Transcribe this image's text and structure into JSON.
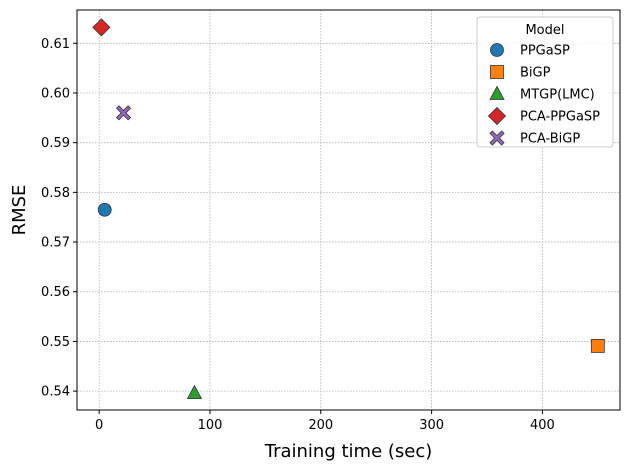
{
  "chart_data": {
    "type": "scatter",
    "title": "",
    "xlabel": "Training time (sec)",
    "ylabel": "RMSE",
    "xlim": [
      -20,
      470
    ],
    "ylim": [
      0.5362,
      0.6167
    ],
    "xticks": [
      0,
      100,
      200,
      300,
      400
    ],
    "yticks": [
      0.54,
      0.55,
      0.56,
      0.57,
      0.58,
      0.59,
      0.6,
      0.61
    ],
    "xtick_labels": [
      "0",
      "100",
      "200",
      "300",
      "400"
    ],
    "ytick_labels": [
      "0.54",
      "0.55",
      "0.56",
      "0.57",
      "0.58",
      "0.59",
      "0.60",
      "0.61"
    ],
    "grid": true,
    "legend_title": "Model",
    "legend_position": "top-right",
    "series": [
      {
        "name": "PPGaSP",
        "marker": "circle",
        "color": "#1f77b4",
        "x": 5,
        "y": 0.5765
      },
      {
        "name": "BiGP",
        "marker": "square",
        "color": "#ff7f0e",
        "x": 450,
        "y": 0.5491
      },
      {
        "name": "MTGP(LMC)",
        "marker": "triangle",
        "color": "#2ca02c",
        "x": 86,
        "y": 0.5396
      },
      {
        "name": "PCA-PPGaSP",
        "marker": "diamond",
        "color": "#d62728",
        "x": 2,
        "y": 0.6132
      },
      {
        "name": "PCA-BiGP",
        "marker": "x",
        "color": "#9467bd",
        "x": 22,
        "y": 0.596
      }
    ]
  }
}
